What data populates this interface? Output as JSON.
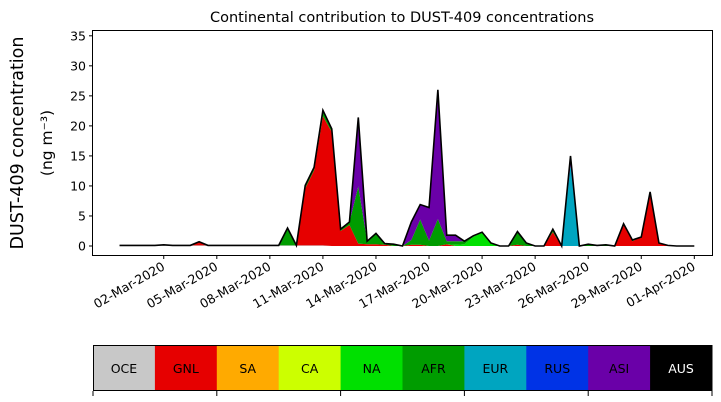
{
  "chart_data": {
    "type": "area",
    "stacked": true,
    "title": "Continental contribution to DUST-409 concentrations",
    "ylabel_line1": "DUST-409 concentration",
    "ylabel_line2": "(ng m⁻³)",
    "xlabel": "",
    "ylim": [
      -1.5,
      35.8
    ],
    "y_ticks": [
      0,
      5,
      10,
      15,
      20,
      25,
      30,
      35
    ],
    "x_start": "2020-02-27",
    "x_end": "2020-04-02",
    "x_ticks": [
      {
        "date": "2020-03-02",
        "label": "02-Mar-2020"
      },
      {
        "date": "2020-03-05",
        "label": "05-Mar-2020"
      },
      {
        "date": "2020-03-08",
        "label": "08-Mar-2020"
      },
      {
        "date": "2020-03-11",
        "label": "11-Mar-2020"
      },
      {
        "date": "2020-03-14",
        "label": "14-Mar-2020"
      },
      {
        "date": "2020-03-17",
        "label": "17-Mar-2020"
      },
      {
        "date": "2020-03-20",
        "label": "20-Mar-2020"
      },
      {
        "date": "2020-03-23",
        "label": "23-Mar-2020"
      },
      {
        "date": "2020-03-26",
        "label": "26-Mar-2020"
      },
      {
        "date": "2020-03-29",
        "label": "29-Mar-2020"
      },
      {
        "date": "2020-04-01",
        "label": "01-Apr-2020"
      }
    ],
    "x": [
      "2020-02-28T12:00",
      "2020-02-29T00:00",
      "2020-02-29T12:00",
      "2020-03-01T00:00",
      "2020-03-01T12:00",
      "2020-03-02T00:00",
      "2020-03-02T12:00",
      "2020-03-03T00:00",
      "2020-03-03T12:00",
      "2020-03-04T00:00",
      "2020-03-04T12:00",
      "2020-03-05T00:00",
      "2020-03-05T12:00",
      "2020-03-06T00:00",
      "2020-03-06T12:00",
      "2020-03-07T00:00",
      "2020-03-07T12:00",
      "2020-03-08T00:00",
      "2020-03-08T12:00",
      "2020-03-09T00:00",
      "2020-03-09T12:00",
      "2020-03-10T00:00",
      "2020-03-10T12:00",
      "2020-03-11T00:00",
      "2020-03-11T12:00",
      "2020-03-12T00:00",
      "2020-03-12T12:00",
      "2020-03-13T00:00",
      "2020-03-13T12:00",
      "2020-03-14T00:00",
      "2020-03-14T12:00",
      "2020-03-15T00:00",
      "2020-03-15T12:00",
      "2020-03-16T00:00",
      "2020-03-16T12:00",
      "2020-03-17T00:00",
      "2020-03-17T12:00",
      "2020-03-18T00:00",
      "2020-03-18T12:00",
      "2020-03-19T00:00",
      "2020-03-19T12:00",
      "2020-03-20T00:00",
      "2020-03-20T12:00",
      "2020-03-21T00:00",
      "2020-03-21T12:00",
      "2020-03-22T00:00",
      "2020-03-22T12:00",
      "2020-03-23T00:00",
      "2020-03-23T12:00",
      "2020-03-24T00:00",
      "2020-03-24T12:00",
      "2020-03-25T00:00",
      "2020-03-25T12:00",
      "2020-03-26T00:00",
      "2020-03-26T12:00",
      "2020-03-27T00:00",
      "2020-03-27T12:00",
      "2020-03-28T00:00",
      "2020-03-28T12:00",
      "2020-03-29T00:00",
      "2020-03-29T12:00",
      "2020-03-30T00:00",
      "2020-03-30T12:00",
      "2020-03-31T00:00",
      "2020-03-31T12:00",
      "2020-04-01T00:00"
    ],
    "series": [
      {
        "name": "OCE",
        "color": "#c8c8c8",
        "values": [
          0.1,
          0.1,
          0.1,
          0.1,
          0.1,
          0.1,
          0.1,
          0.1,
          0.1,
          0.1,
          0.1,
          0.1,
          0.1,
          0.1,
          0.1,
          0.1,
          0.1,
          0.1,
          0.1,
          0.1,
          0.1,
          0.1,
          0.1,
          0.1,
          0,
          0,
          0,
          0,
          0,
          0,
          0,
          0,
          0,
          0,
          0,
          0,
          0,
          0,
          0,
          0,
          0,
          0,
          0,
          0,
          0,
          0,
          0,
          0,
          0,
          0,
          0,
          0,
          0,
          0,
          0,
          0,
          0,
          0,
          0,
          0,
          0,
          0,
          0,
          0,
          0,
          0
        ]
      },
      {
        "name": "GNL",
        "color": "#e60000",
        "values": [
          0,
          0,
          0,
          0,
          0,
          0.1,
          0,
          0,
          0,
          0.6,
          0,
          0,
          0,
          0,
          0,
          0,
          0,
          0,
          0,
          0,
          0,
          9.5,
          12.5,
          21.5,
          19,
          2.5,
          3.5,
          0.4,
          0.3,
          0.3,
          0.2,
          0,
          0,
          0.2,
          0.2,
          0,
          0,
          0.3,
          0,
          0,
          0,
          0,
          0,
          0,
          0,
          0.2,
          0,
          0,
          0,
          2.3,
          0,
          0,
          0,
          0,
          0,
          0,
          0,
          3.5,
          0.8,
          1.5,
          9,
          0.5,
          0.1,
          0,
          0,
          0
        ]
      },
      {
        "name": "SA",
        "color": "#ffaa00",
        "values": [
          0,
          0,
          0,
          0,
          0,
          0,
          0,
          0,
          0,
          0,
          0,
          0,
          0,
          0,
          0,
          0,
          0,
          0,
          0,
          0,
          0,
          0,
          0,
          0,
          0,
          0,
          0,
          0,
          0,
          0,
          0,
          0,
          0,
          0,
          0,
          0,
          0,
          0,
          0,
          0,
          0,
          0,
          0,
          0,
          0,
          0,
          0,
          0,
          0,
          0,
          0,
          0,
          0,
          0,
          0,
          0,
          0,
          0,
          0,
          0,
          0,
          0,
          0,
          0,
          0,
          0
        ]
      },
      {
        "name": "CA",
        "color": "#ccff00",
        "values": [
          0,
          0,
          0,
          0,
          0,
          0,
          0,
          0,
          0,
          0,
          0,
          0,
          0,
          0,
          0,
          0,
          0,
          0,
          0,
          0,
          0,
          0,
          0,
          0,
          0,
          0,
          0,
          0,
          0,
          0,
          0,
          0,
          0,
          0,
          0,
          0,
          0,
          0,
          0,
          0,
          0,
          0,
          0,
          0,
          0,
          0,
          0,
          0,
          0,
          0,
          0,
          0,
          0,
          0,
          0,
          0,
          0,
          0,
          0,
          0,
          0,
          0,
          0,
          0,
          0,
          0
        ]
      },
      {
        "name": "NA",
        "color": "#00e000",
        "values": [
          0,
          0,
          0,
          0,
          0,
          0,
          0,
          0,
          0,
          0,
          0,
          0,
          0,
          0,
          0,
          0,
          0,
          0,
          0,
          0,
          0,
          0,
          0,
          0,
          0,
          0,
          0,
          0,
          0,
          0,
          0,
          0,
          0,
          0,
          0,
          0,
          0,
          0,
          0.2,
          0.3,
          1.5,
          2.3,
          0.5,
          0,
          0,
          0,
          0,
          0,
          0,
          0,
          0,
          0,
          0,
          0,
          0,
          0,
          0,
          0,
          0,
          0,
          0,
          0,
          0,
          0,
          0,
          0
        ]
      },
      {
        "name": "AFR",
        "color": "#009c00",
        "values": [
          0,
          0,
          0,
          0,
          0,
          0,
          0,
          0,
          0,
          0,
          0,
          0,
          0,
          0,
          0,
          0,
          0,
          0,
          0,
          2.9,
          0,
          0.5,
          0.5,
          1,
          0.5,
          0.3,
          0.5,
          9.5,
          0.5,
          1.8,
          0.2,
          0.3,
          0,
          0.8,
          4.2,
          0.9,
          4.5,
          0.5,
          0.6,
          0.5,
          0.2,
          0,
          0,
          0,
          0,
          2.2,
          0.5,
          0,
          0,
          0.5,
          0,
          0,
          0,
          0.3,
          0.1,
          0.2,
          0,
          0.2,
          0.2,
          0,
          0,
          0,
          0,
          0,
          0,
          0
        ]
      },
      {
        "name": "EUR",
        "color": "#00a5c0",
        "values": [
          0,
          0,
          0,
          0,
          0,
          0,
          0,
          0,
          0,
          0,
          0,
          0,
          0,
          0,
          0,
          0,
          0,
          0,
          0,
          0,
          0,
          0,
          0,
          0,
          0,
          0,
          0,
          0,
          0,
          0,
          0,
          0,
          0,
          0,
          0,
          0,
          0,
          0,
          0,
          0,
          0,
          0,
          0,
          0,
          0,
          0,
          0,
          0,
          0,
          0,
          0,
          13.5,
          0,
          0,
          0,
          0,
          0,
          0,
          0,
          0,
          0,
          0,
          0,
          0,
          0,
          0
        ]
      },
      {
        "name": "RUS",
        "color": "#0033e6",
        "values": [
          0,
          0,
          0,
          0,
          0,
          0,
          0,
          0,
          0,
          0,
          0,
          0,
          0,
          0,
          0,
          0,
          0,
          0,
          0,
          0,
          0,
          0,
          0,
          0,
          0,
          0,
          0,
          0,
          0,
          0,
          0,
          0,
          0,
          0,
          0,
          0,
          0,
          0,
          0,
          0,
          0,
          0,
          0,
          0,
          0,
          0,
          0,
          0,
          0,
          0,
          0,
          0,
          0,
          0,
          0,
          0,
          0,
          0,
          0,
          0,
          0,
          0,
          0,
          0,
          0,
          0
        ]
      },
      {
        "name": "ASI",
        "color": "#6a00a8",
        "values": [
          0,
          0,
          0,
          0,
          0,
          0,
          0,
          0,
          0,
          0,
          0,
          0,
          0,
          0,
          0,
          0,
          0,
          0,
          0,
          0,
          0,
          0,
          0,
          0,
          0,
          0,
          0,
          11.5,
          0,
          0,
          0,
          0,
          0,
          3,
          2.5,
          5.5,
          21.5,
          1,
          1,
          0,
          0,
          0,
          0,
          0,
          0,
          0,
          0,
          0,
          0,
          0,
          0,
          1.5,
          0,
          0,
          0,
          0,
          0,
          0,
          0,
          0,
          0,
          0,
          0,
          0,
          0,
          0
        ]
      },
      {
        "name": "AUS",
        "color": "#000000",
        "values": [
          0,
          0,
          0,
          0,
          0,
          0,
          0,
          0,
          0,
          0,
          0,
          0,
          0,
          0,
          0,
          0,
          0,
          0,
          0,
          0,
          0,
          0,
          0,
          0,
          0,
          0,
          0,
          0,
          0,
          0,
          0,
          0,
          0,
          0,
          0,
          0,
          0,
          0,
          0,
          0,
          0,
          0,
          0,
          0,
          0,
          0,
          0,
          0,
          0,
          0,
          0,
          0,
          0,
          0,
          0,
          0,
          0,
          0,
          0,
          0,
          0,
          0,
          0,
          0,
          0,
          0
        ]
      }
    ],
    "legend": {
      "placement": "bottom",
      "labels": [
        "OCE",
        "GNL",
        "SA",
        "CA",
        "NA",
        "AFR",
        "EUR",
        "RUS",
        "ASI",
        "AUS"
      ]
    }
  }
}
